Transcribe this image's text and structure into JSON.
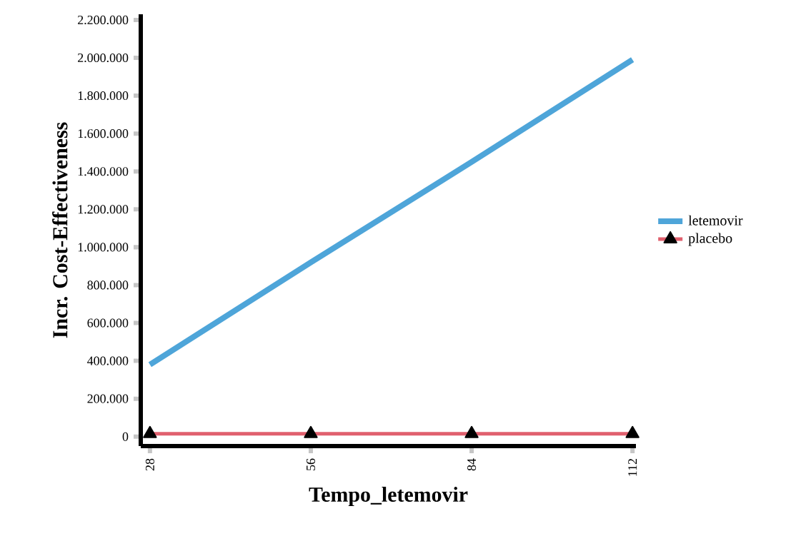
{
  "chart_data": {
    "type": "line",
    "xlabel": "Tempo_letemovir",
    "ylabel": "Incr. Cost-Effectiveness",
    "x": [
      28,
      56,
      84,
      112
    ],
    "series": [
      {
        "name": "letemovir",
        "color": "#4ea5d9",
        "values": [
          380000,
          920000,
          1450000,
          1990000
        ],
        "marker": "none"
      },
      {
        "name": "placebo",
        "color": "#e0606e",
        "values": [
          15000,
          15000,
          15000,
          15000
        ],
        "marker": "triangle"
      }
    ],
    "xlim": [
      26.4,
      112.6
    ],
    "xticks": [
      28,
      56,
      84,
      112
    ],
    "ylim": [
      -50000,
      2230000
    ],
    "yticks": [
      0,
      {
        "value": 200000,
        "label": "200.000"
      },
      {
        "value": 400000,
        "label": "400.000"
      },
      {
        "value": 600000,
        "label": "600.000"
      },
      {
        "value": 800000,
        "label": "800.000"
      },
      {
        "value": 1000000,
        "label": "1.000.000"
      },
      {
        "value": 1200000,
        "label": "1.200.000"
      },
      {
        "value": 1400000,
        "label": "1.400.000"
      },
      {
        "value": 1600000,
        "label": "1.600.000"
      },
      {
        "value": 1800000,
        "label": "1.800.000"
      },
      {
        "value": 2000000,
        "label": "2.000.000"
      },
      {
        "value": 2200000,
        "label": "2.200.000"
      }
    ],
    "legend": "right",
    "grid": false
  }
}
